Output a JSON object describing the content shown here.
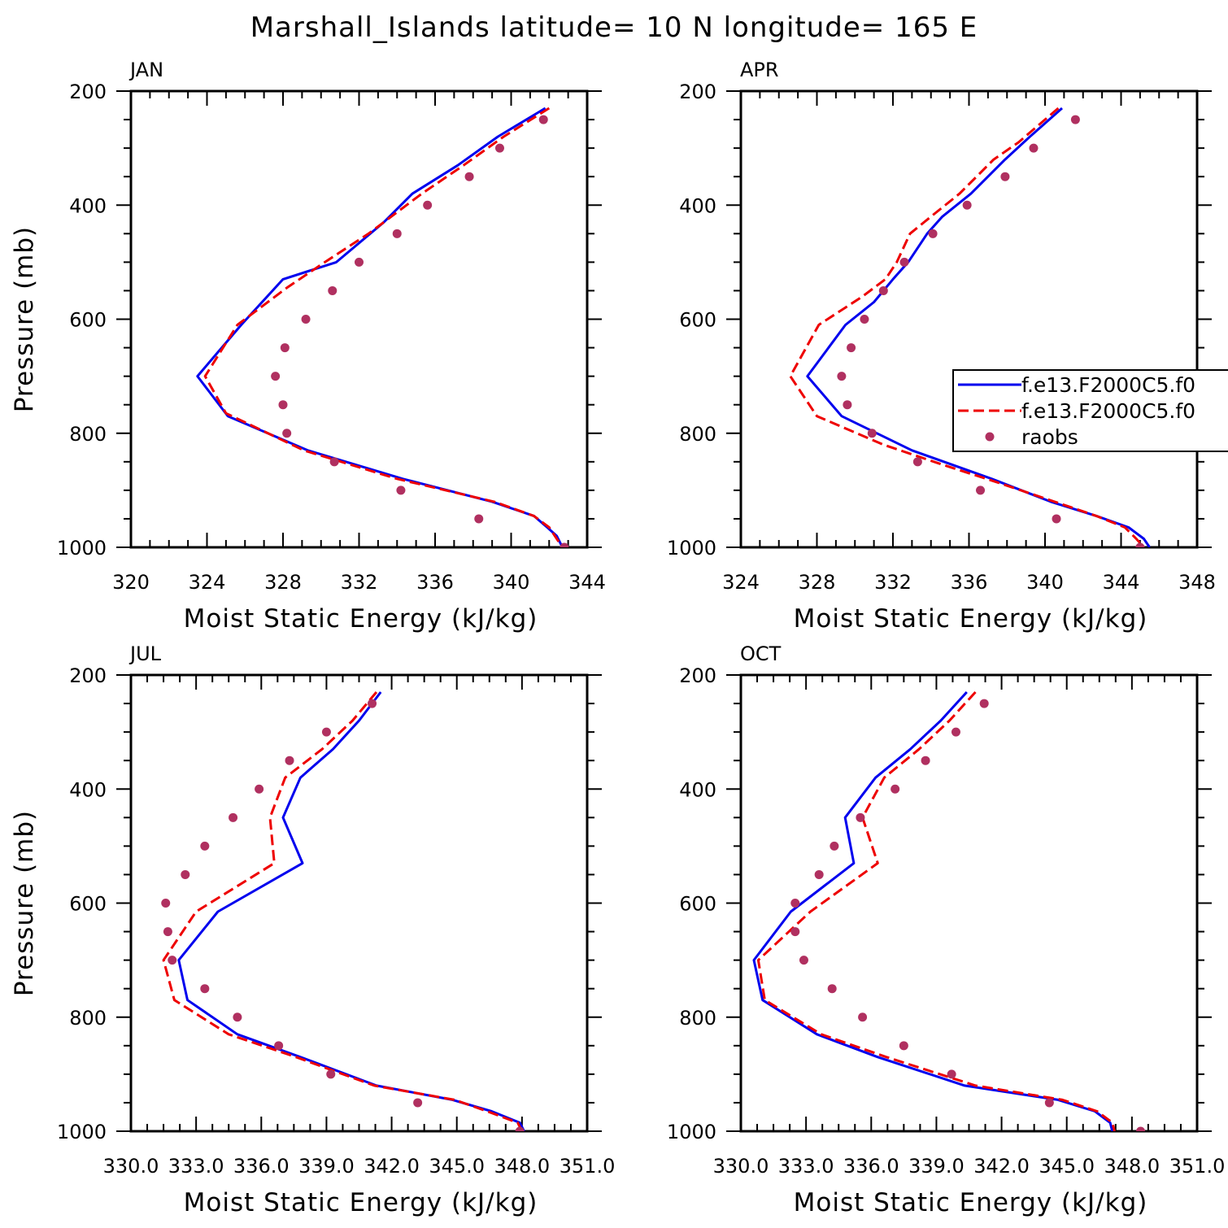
{
  "title": "Marshall_Islands  latitude= 10 N longitude= 165 E",
  "colors": {
    "model_1": "#0000ee",
    "model_2": "#ee0000",
    "raobs": "#b03060"
  },
  "legend": {
    "placement": "inside APR panel, right edge, clipped",
    "entries": [
      {
        "label": "f.e13.F2000C5.f0",
        "style": "solid",
        "color": "#0000ee"
      },
      {
        "label": "f.e13.F2000C5.f0",
        "style": "dashed",
        "color": "#ee0000"
      },
      {
        "label": "raobs",
        "style": "dot",
        "color": "#b03060"
      }
    ]
  },
  "chart_data": [
    {
      "type": "line",
      "panel": "JAN",
      "xlabel": "Moist Static Energy (kJ/kg)",
      "ylabel": "Pressure (mb)",
      "xlim": [
        320,
        344
      ],
      "ylim": [
        1000,
        200
      ],
      "xticks": [
        320,
        324,
        328,
        332,
        336,
        340,
        344
      ],
      "xtick_labels": [
        "320",
        "324",
        "328",
        "332",
        "336",
        "340",
        "344"
      ],
      "yticks": [
        200,
        400,
        600,
        800,
        1000
      ],
      "ytick_labels": [
        "200",
        "400",
        "600",
        "800",
        "1000"
      ],
      "grid": false,
      "series": [
        {
          "style": "solid",
          "color": "#0000ee",
          "points": [
            [
              341.8,
              230
            ],
            [
              339.3,
              280
            ],
            [
              337.2,
              330
            ],
            [
              334.8,
              380
            ],
            [
              333.3,
              430
            ],
            [
              330.8,
              500
            ],
            [
              328.0,
              530
            ],
            [
              325.8,
              610
            ],
            [
              323.5,
              700
            ],
            [
              325.1,
              770
            ],
            [
              329.3,
              830
            ],
            [
              334.3,
              880
            ],
            [
              339.0,
              920
            ],
            [
              341.2,
              945
            ],
            [
              341.9,
              965
            ],
            [
              342.4,
              980
            ],
            [
              342.7,
              1000
            ]
          ]
        },
        {
          "style": "dashed",
          "color": "#ee0000",
          "points": [
            [
              342.0,
              230
            ],
            [
              339.6,
              280
            ],
            [
              337.5,
              330
            ],
            [
              335.3,
              380
            ],
            [
              332.5,
              450
            ],
            [
              330.2,
              500
            ],
            [
              328.2,
              545
            ],
            [
              325.6,
              610
            ],
            [
              323.9,
              700
            ],
            [
              325.0,
              765
            ],
            [
              329.1,
              830
            ],
            [
              334.0,
              880
            ],
            [
              339.1,
              920
            ],
            [
              341.2,
              945
            ],
            [
              342.0,
              965
            ],
            [
              342.4,
              985
            ],
            [
              342.7,
              1000
            ]
          ]
        },
        {
          "style": "dot",
          "color": "#b03060",
          "points": [
            [
              341.7,
              250
            ],
            [
              339.4,
              300
            ],
            [
              337.8,
              350
            ],
            [
              335.6,
              400
            ],
            [
              334.0,
              450
            ],
            [
              332.0,
              500
            ],
            [
              330.6,
              550
            ],
            [
              329.2,
              600
            ],
            [
              328.1,
              650
            ],
            [
              327.6,
              700
            ],
            [
              328.0,
              750
            ],
            [
              328.2,
              800
            ],
            [
              330.7,
              850
            ],
            [
              334.2,
              900
            ],
            [
              338.3,
              950
            ],
            [
              342.8,
              1000
            ]
          ]
        }
      ]
    },
    {
      "type": "line",
      "panel": "APR",
      "xlabel": "Moist Static Energy (kJ/kg)",
      "ylabel": "",
      "xlim": [
        324,
        348
      ],
      "ylim": [
        1000,
        200
      ],
      "xticks": [
        324,
        328,
        332,
        336,
        340,
        344,
        348
      ],
      "xtick_labels": [
        "324",
        "328",
        "332",
        "336",
        "340",
        "344",
        "348"
      ],
      "yticks": [
        200,
        400,
        600,
        800,
        1000
      ],
      "ytick_labels": [
        "200",
        "400",
        "600",
        "800",
        "1000"
      ],
      "grid": false,
      "series": [
        {
          "style": "solid",
          "color": "#0000ee",
          "points": [
            [
              340.9,
              230
            ],
            [
              339.2,
              280
            ],
            [
              337.9,
              320
            ],
            [
              336.1,
              380
            ],
            [
              334.6,
              420
            ],
            [
              333.8,
              450
            ],
            [
              332.8,
              500
            ],
            [
              332.0,
              530
            ],
            [
              331.0,
              570
            ],
            [
              329.5,
              610
            ],
            [
              327.5,
              700
            ],
            [
              329.3,
              770
            ],
            [
              333.0,
              830
            ],
            [
              337.2,
              880
            ],
            [
              340.3,
              920
            ],
            [
              342.7,
              945
            ],
            [
              344.4,
              965
            ],
            [
              345.2,
              985
            ],
            [
              345.5,
              1000
            ]
          ]
        },
        {
          "style": "dashed",
          "color": "#ee0000",
          "points": [
            [
              340.7,
              230
            ],
            [
              338.6,
              290
            ],
            [
              337.3,
              320
            ],
            [
              335.5,
              380
            ],
            [
              334.0,
              420
            ],
            [
              332.9,
              450
            ],
            [
              332.2,
              500
            ],
            [
              331.6,
              530
            ],
            [
              330.4,
              560
            ],
            [
              328.1,
              610
            ],
            [
              326.6,
              700
            ],
            [
              328.0,
              770
            ],
            [
              331.5,
              820
            ],
            [
              334.6,
              855
            ],
            [
              337.4,
              885
            ],
            [
              340.5,
              920
            ],
            [
              342.7,
              945
            ],
            [
              344.2,
              965
            ],
            [
              344.8,
              985
            ],
            [
              345.2,
              1000
            ]
          ]
        },
        {
          "style": "dot",
          "color": "#b03060",
          "points": [
            [
              341.6,
              250
            ],
            [
              339.4,
              300
            ],
            [
              337.9,
              350
            ],
            [
              335.9,
              400
            ],
            [
              334.1,
              450
            ],
            [
              332.6,
              500
            ],
            [
              331.5,
              550
            ],
            [
              330.5,
              600
            ],
            [
              329.8,
              650
            ],
            [
              329.3,
              700
            ],
            [
              329.6,
              750
            ],
            [
              330.9,
              800
            ],
            [
              333.3,
              850
            ],
            [
              336.6,
              900
            ],
            [
              340.6,
              950
            ],
            [
              345.0,
              1000
            ]
          ]
        }
      ]
    },
    {
      "type": "line",
      "panel": "JUL",
      "xlabel": "Moist Static Energy (kJ/kg)",
      "ylabel": "Pressure (mb)",
      "xlim": [
        330.0,
        351.0
      ],
      "ylim": [
        1000,
        200
      ],
      "xticks": [
        330.0,
        333.0,
        336.0,
        339.0,
        342.0,
        345.0,
        348.0,
        351.0
      ],
      "xtick_labels": [
        "330.0",
        "333.0",
        "336.0",
        "339.0",
        "342.0",
        "345.0",
        "348.0",
        "351.0"
      ],
      "yticks": [
        200,
        400,
        600,
        800,
        1000
      ],
      "ytick_labels": [
        "200",
        "400",
        "600",
        "800",
        "1000"
      ],
      "grid": false,
      "series": [
        {
          "style": "solid",
          "color": "#0000ee",
          "points": [
            [
              341.5,
              230
            ],
            [
              340.5,
              280
            ],
            [
              339.3,
              330
            ],
            [
              337.8,
              380
            ],
            [
              337.0,
              450
            ],
            [
              337.9,
              530
            ],
            [
              334.0,
              615
            ],
            [
              332.2,
              700
            ],
            [
              332.6,
              770
            ],
            [
              334.9,
              830
            ],
            [
              337.8,
              870
            ],
            [
              341.3,
              920
            ],
            [
              344.8,
              945
            ],
            [
              346.6,
              965
            ],
            [
              347.9,
              985
            ],
            [
              348.1,
              1000
            ]
          ]
        },
        {
          "style": "dashed",
          "color": "#ee0000",
          "points": [
            [
              341.3,
              230
            ],
            [
              340.2,
              280
            ],
            [
              338.8,
              330
            ],
            [
              337.1,
              380
            ],
            [
              336.4,
              450
            ],
            [
              336.6,
              530
            ],
            [
              333.0,
              615
            ],
            [
              331.5,
              700
            ],
            [
              332.0,
              770
            ],
            [
              334.5,
              830
            ],
            [
              337.6,
              870
            ],
            [
              341.2,
              920
            ],
            [
              344.9,
              945
            ],
            [
              346.4,
              965
            ],
            [
              347.8,
              985
            ],
            [
              348.0,
              1000
            ]
          ]
        },
        {
          "style": "dot",
          "color": "#b03060",
          "points": [
            [
              341.1,
              250
            ],
            [
              339.0,
              300
            ],
            [
              337.3,
              350
            ],
            [
              335.9,
              400
            ],
            [
              334.7,
              450
            ],
            [
              333.4,
              500
            ],
            [
              332.5,
              550
            ],
            [
              331.6,
              600
            ],
            [
              331.7,
              650
            ],
            [
              331.9,
              700
            ],
            [
              333.4,
              750
            ],
            [
              334.9,
              800
            ],
            [
              336.8,
              850
            ],
            [
              339.2,
              900
            ],
            [
              343.2,
              950
            ],
            [
              347.9,
              1000
            ]
          ]
        }
      ]
    },
    {
      "type": "line",
      "panel": "OCT",
      "xlabel": "Moist Static Energy (kJ/kg)",
      "ylabel": "",
      "xlim": [
        330.0,
        351.0
      ],
      "ylim": [
        1000,
        200
      ],
      "xticks": [
        330.0,
        333.0,
        336.0,
        339.0,
        342.0,
        345.0,
        348.0,
        351.0
      ],
      "xtick_labels": [
        "330.0",
        "333.0",
        "336.0",
        "339.0",
        "342.0",
        "345.0",
        "348.0",
        "351.0"
      ],
      "yticks": [
        200,
        400,
        600,
        800,
        1000
      ],
      "ytick_labels": [
        "200",
        "400",
        "600",
        "800",
        "1000"
      ],
      "grid": false,
      "series": [
        {
          "style": "solid",
          "color": "#0000ee",
          "points": [
            [
              340.4,
              230
            ],
            [
              339.2,
              280
            ],
            [
              337.8,
              330
            ],
            [
              336.2,
              380
            ],
            [
              334.8,
              450
            ],
            [
              335.2,
              530
            ],
            [
              332.3,
              615
            ],
            [
              330.6,
              700
            ],
            [
              331.0,
              770
            ],
            [
              333.5,
              830
            ],
            [
              336.3,
              870
            ],
            [
              340.3,
              920
            ],
            [
              344.6,
              945
            ],
            [
              346.3,
              965
            ],
            [
              347.0,
              985
            ],
            [
              347.1,
              1000
            ]
          ]
        },
        {
          "style": "dashed",
          "color": "#ee0000",
          "points": [
            [
              340.8,
              230
            ],
            [
              339.6,
              280
            ],
            [
              338.2,
              330
            ],
            [
              336.6,
              380
            ],
            [
              335.6,
              450
            ],
            [
              336.3,
              530
            ],
            [
              333.2,
              615
            ],
            [
              330.8,
              700
            ],
            [
              331.1,
              770
            ],
            [
              333.7,
              830
            ],
            [
              336.7,
              870
            ],
            [
              340.8,
              920
            ],
            [
              344.8,
              945
            ],
            [
              346.4,
              965
            ],
            [
              347.1,
              985
            ],
            [
              347.2,
              1000
            ]
          ]
        },
        {
          "style": "dot",
          "color": "#b03060",
          "points": [
            [
              341.2,
              250
            ],
            [
              339.9,
              300
            ],
            [
              338.5,
              350
            ],
            [
              337.1,
              400
            ],
            [
              335.5,
              450
            ],
            [
              334.3,
              500
            ],
            [
              333.6,
              550
            ],
            [
              332.5,
              600
            ],
            [
              332.5,
              650
            ],
            [
              332.9,
              700
            ],
            [
              334.2,
              750
            ],
            [
              335.6,
              800
            ],
            [
              337.5,
              850
            ],
            [
              339.7,
              900
            ],
            [
              344.2,
              950
            ],
            [
              348.4,
              1000
            ]
          ]
        }
      ]
    }
  ]
}
